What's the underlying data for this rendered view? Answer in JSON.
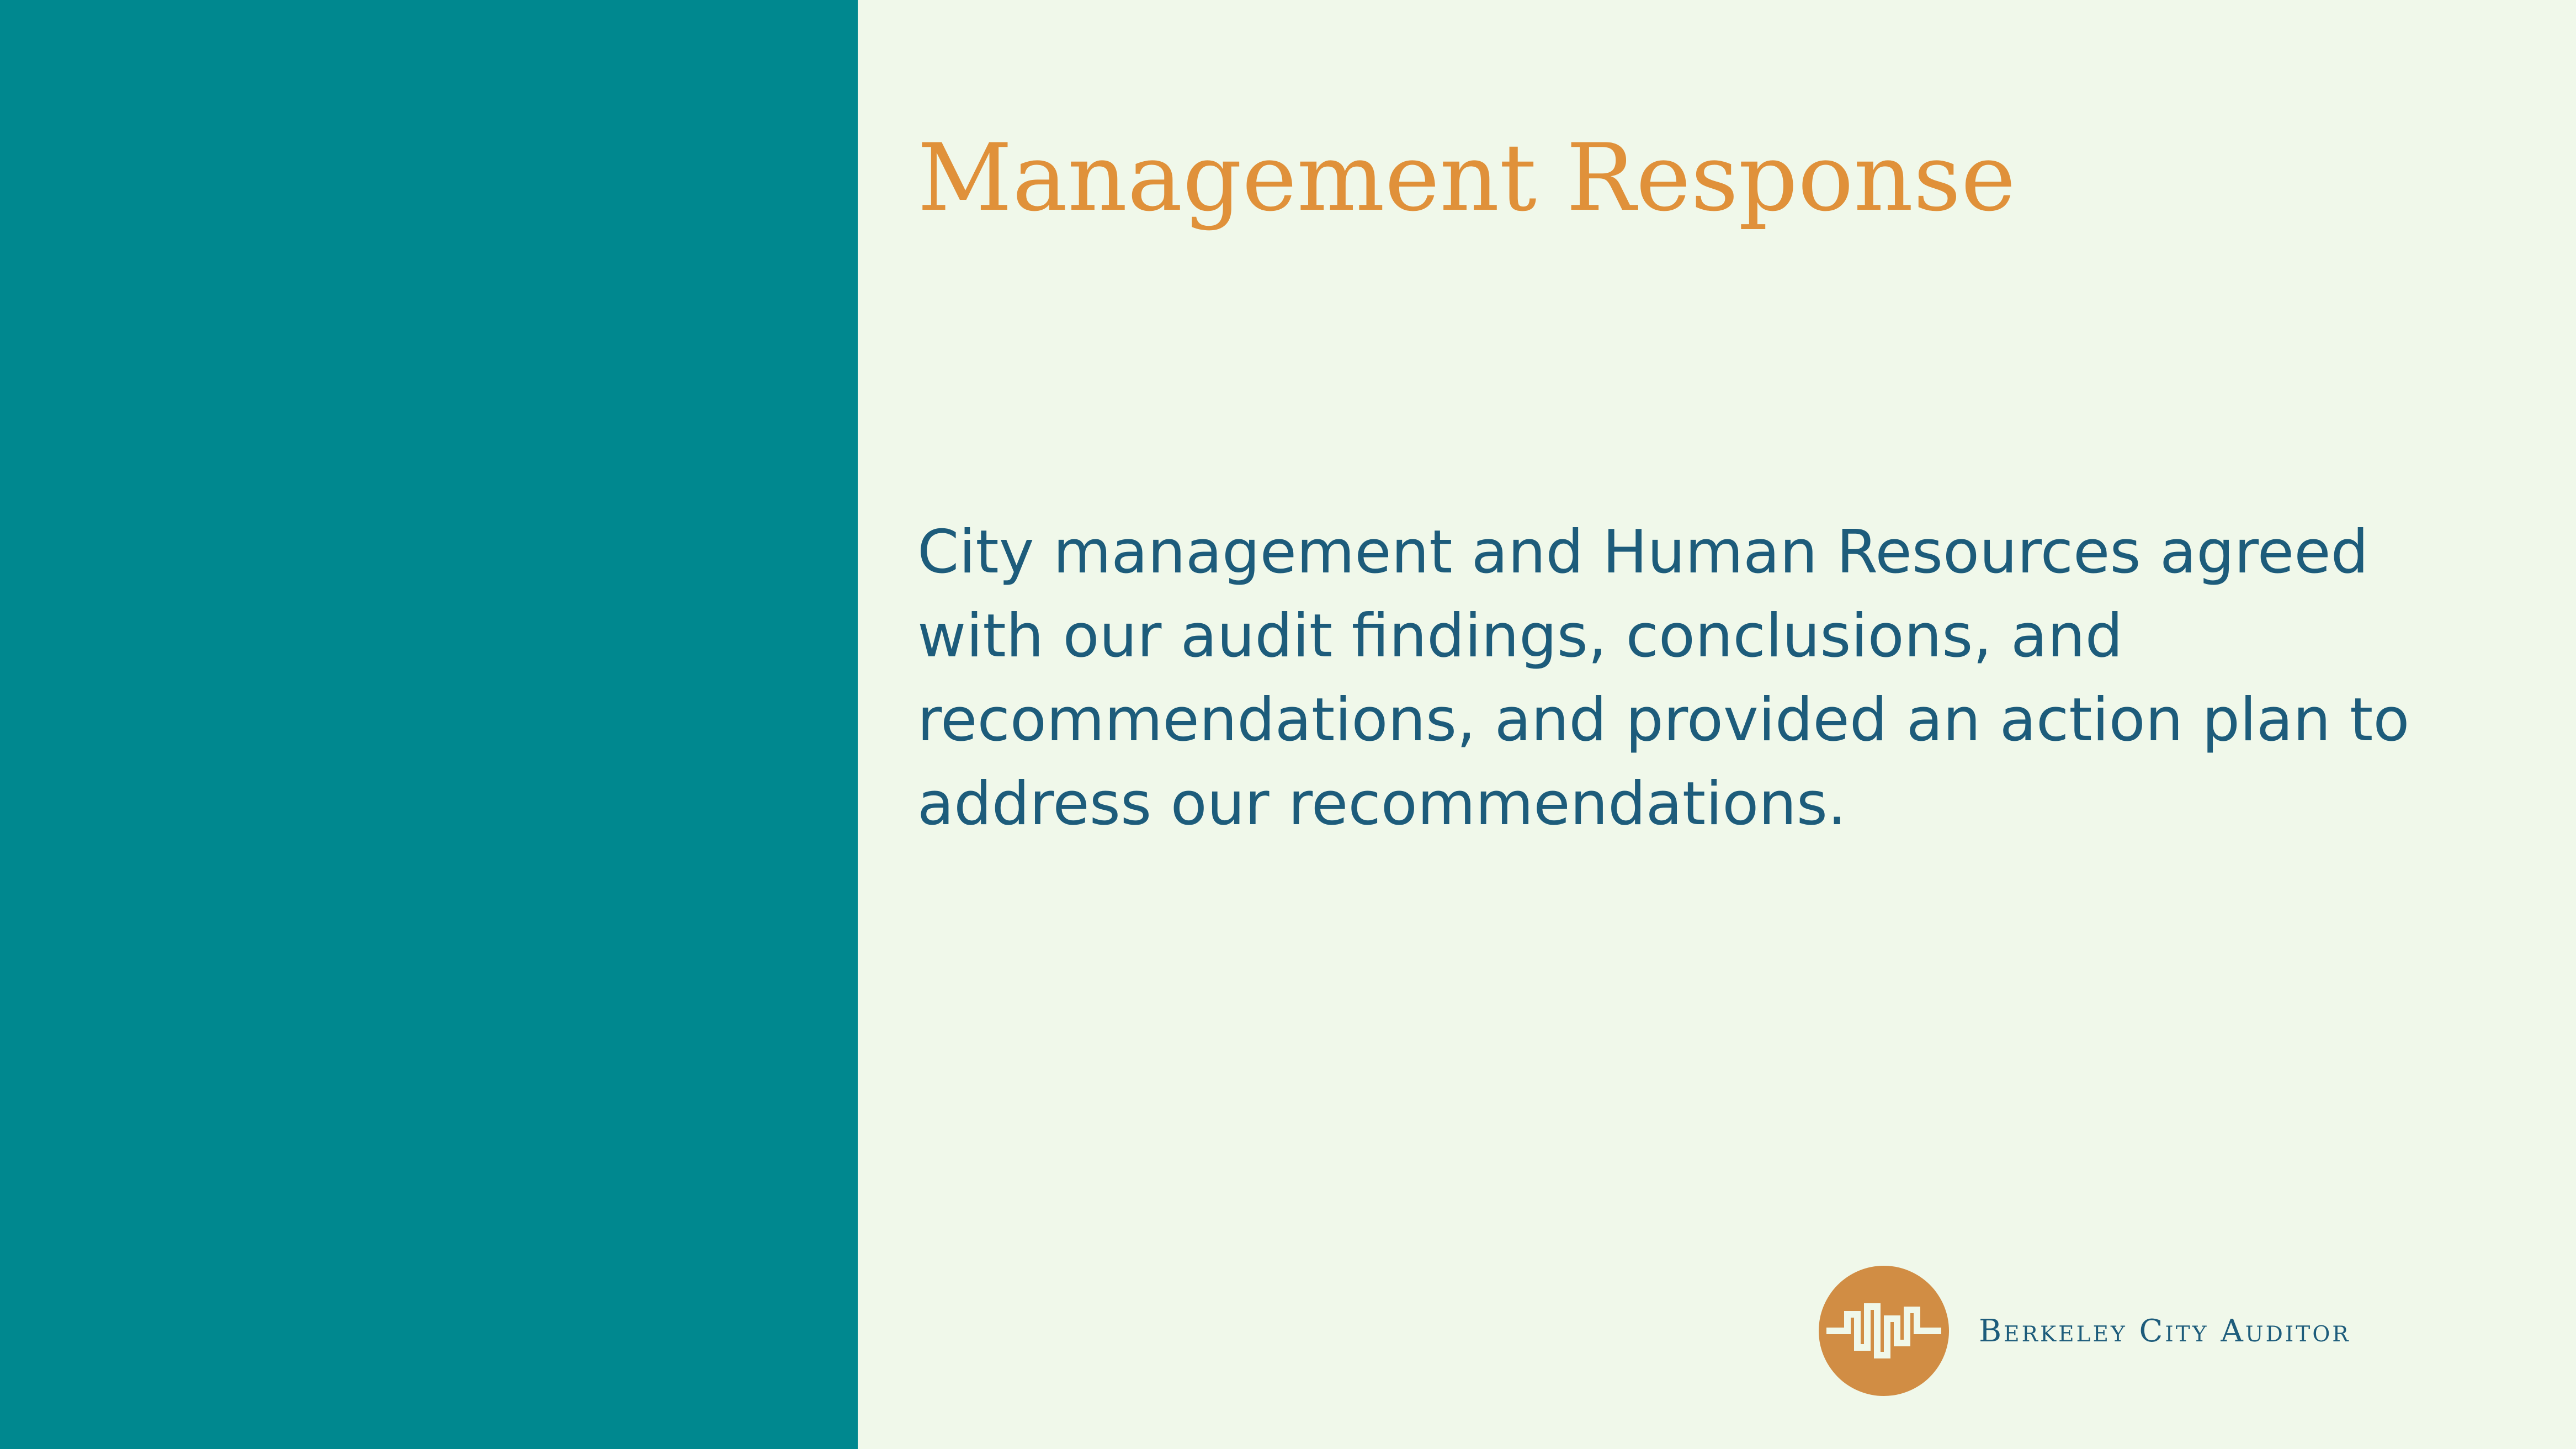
{
  "slide": {
    "title": "Management Response",
    "body": "City management and Human Resources agreed with our audit findings, conclusions, and recommendations, and provided an action plan to address our recommendations."
  },
  "logo": {
    "icon": "berkeley-city-auditor-logo-icon",
    "text": "Berkeley City Auditor"
  },
  "colors": {
    "left_panel": "#00888f",
    "background": "#f0f8ea",
    "title": "#e0913a",
    "body_text": "#1d5c7b",
    "logo_circle": "#d18d44"
  }
}
